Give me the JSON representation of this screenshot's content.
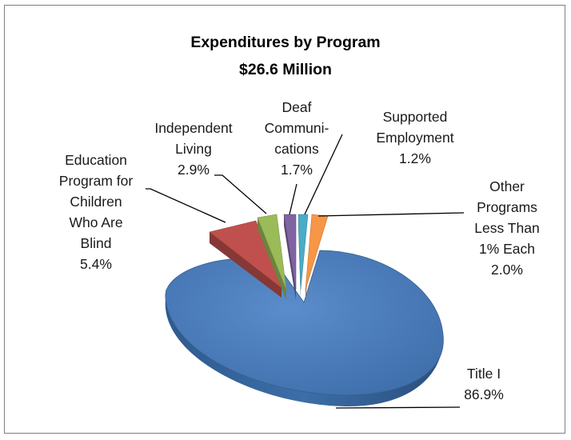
{
  "chart_data": {
    "type": "pie",
    "style": "3d-exploded",
    "title": "Expenditures by Program",
    "subtitle": "$26.6 Million",
    "slices": [
      {
        "key": "title1",
        "label_lines": [
          "Title I"
        ],
        "value_text": "86.9%",
        "value": 86.9,
        "color": "#4f81bd"
      },
      {
        "key": "edu",
        "label_lines": [
          "Education",
          "Program for",
          "Children",
          "Who Are",
          "Blind"
        ],
        "value_text": "5.4%",
        "value": 5.4,
        "color": "#c0504d"
      },
      {
        "key": "indep",
        "label_lines": [
          "Independent",
          "Living"
        ],
        "value_text": "2.9%",
        "value": 2.9,
        "color": "#9bbb59"
      },
      {
        "key": "deaf",
        "label_lines": [
          "Deaf",
          "Communi-",
          "cations"
        ],
        "value_text": "1.7%",
        "value": 1.7,
        "color": "#8064a2"
      },
      {
        "key": "support",
        "label_lines": [
          "Supported",
          "Employment"
        ],
        "value_text": "1.2%",
        "value": 1.2,
        "color": "#4bacc6"
      },
      {
        "key": "other",
        "label_lines": [
          "Other",
          "Programs",
          "Less Than",
          "1% Each"
        ],
        "value_text": "2.0%",
        "value": 2.0,
        "color": "#f79646"
      }
    ],
    "legend": "none"
  }
}
